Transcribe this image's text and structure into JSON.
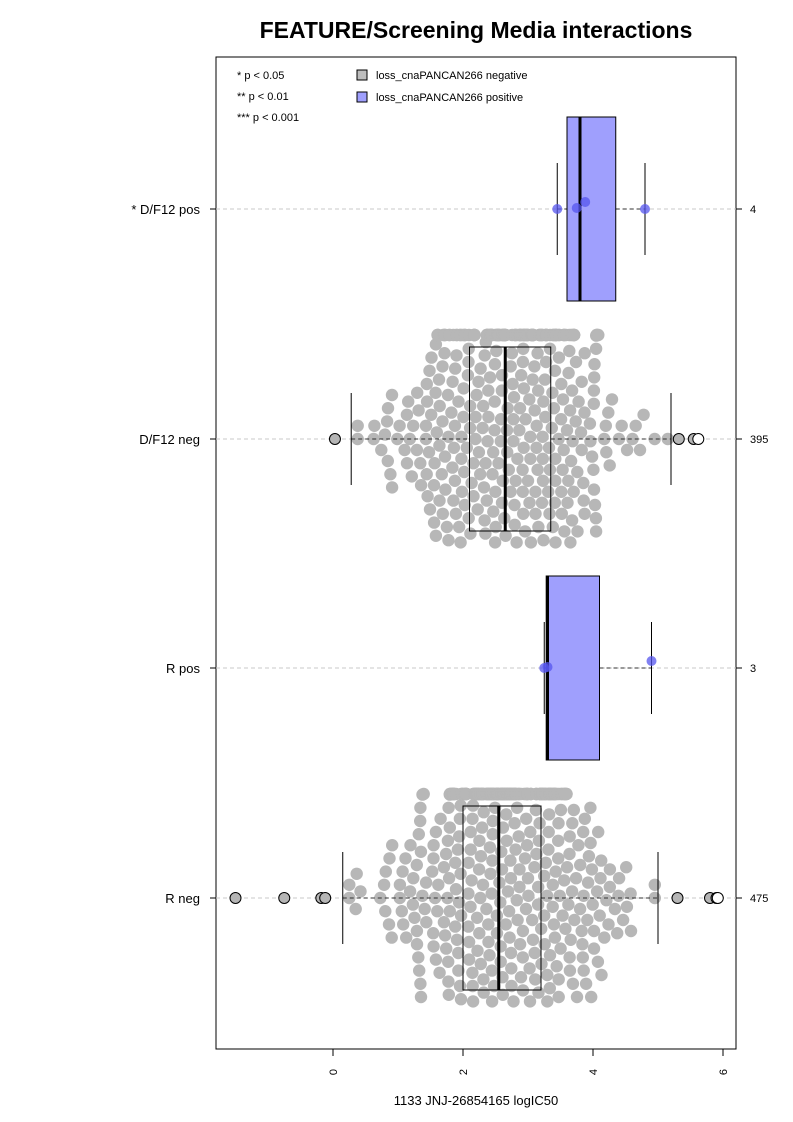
{
  "chart_data": {
    "type": "box",
    "title": "FEATURE/Screening Media interactions",
    "xlabel": "1133 JNJ-26854165 logIC50",
    "xlim": [
      -1.8,
      6.2
    ],
    "x_ticks": [
      "0",
      "2",
      "4",
      "6"
    ],
    "legend": {
      "placement": "top",
      "significance": [
        "* p < 0.05",
        "** p < 0.01",
        "*** p < 0.001"
      ],
      "entries": [
        {
          "label": "loss_cnaPANCAN266 negative",
          "color": "#bdbdbd"
        },
        {
          "label": "loss_cnaPANCAN266 positive",
          "color": "#9f9ffd"
        }
      ]
    },
    "groups": [
      {
        "label": "* D/F12 pos",
        "n": "4",
        "kind": "positive",
        "q1": 3.6,
        "median": 3.8,
        "q3": 4.35,
        "whisker_low": 3.45,
        "whisker_high": 4.8,
        "points": [
          3.45,
          3.75,
          3.88,
          4.8
        ],
        "outliers": []
      },
      {
        "label": "D/F12 neg",
        "n": "395",
        "kind": "negative",
        "q1": 2.1,
        "median": 2.65,
        "q3": 3.35,
        "whisker_low": 0.28,
        "whisker_high": 5.2,
        "points_center": 2.7,
        "points_sd": 0.9,
        "points_count": 395,
        "outliers": [
          0.03,
          5.32,
          5.55,
          5.62
        ]
      },
      {
        "label": "R pos",
        "n": "3",
        "kind": "positive",
        "q1": 3.28,
        "median": 3.3,
        "q3": 4.1,
        "whisker_low": 3.25,
        "whisker_high": 4.9,
        "points": [
          3.25,
          3.3,
          4.9
        ],
        "outliers": []
      },
      {
        "label": "R neg",
        "n": "475",
        "kind": "negative",
        "q1": 2.0,
        "median": 2.55,
        "q3": 3.2,
        "whisker_low": 0.15,
        "whisker_high": 5.0,
        "points_center": 2.6,
        "points_sd": 0.85,
        "points_count": 475,
        "outliers": [
          -1.5,
          -0.75,
          -0.18,
          -0.12,
          5.3,
          5.8,
          5.9,
          5.92
        ]
      }
    ]
  }
}
